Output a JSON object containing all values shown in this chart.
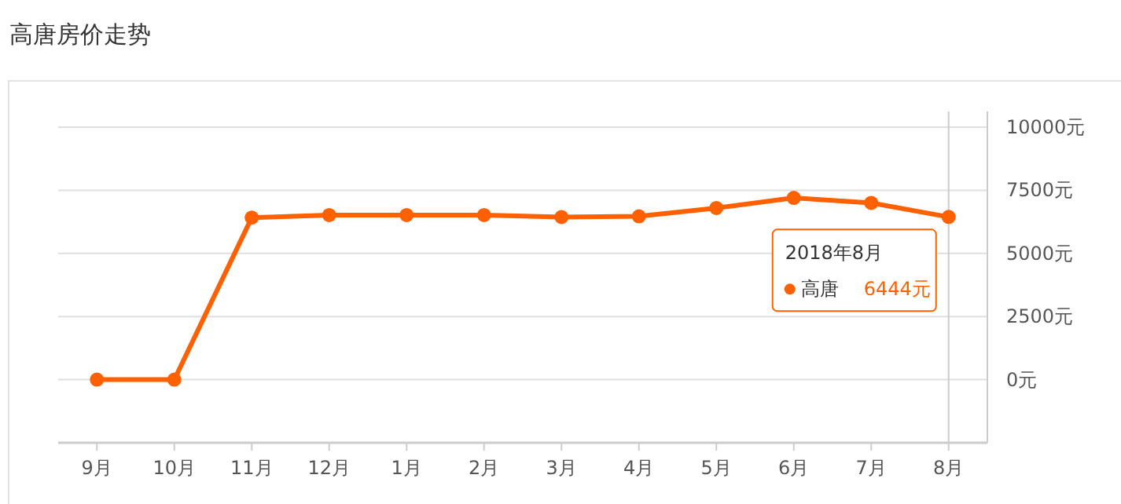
{
  "chart_data": {
    "type": "line",
    "title": "高唐房价走势",
    "categories": [
      "9月",
      "10月",
      "11月",
      "12月",
      "1月",
      "2月",
      "3月",
      "4月",
      "5月",
      "6月",
      "7月",
      "8月"
    ],
    "series": [
      {
        "name": "高唐",
        "color": "#ff6000",
        "values": [
          0,
          0,
          6420,
          6520,
          6520,
          6520,
          6440,
          6470,
          6800,
          7200,
          7000,
          6444
        ],
        "value_labels": [
          null,
          null,
          null,
          null,
          null,
          null,
          null,
          null,
          null,
          null,
          null,
          "6444元"
        ]
      }
    ],
    "ylim": [
      -2500,
      10000
    ],
    "yticks": [
      {
        "value": -2500,
        "label": null
      },
      {
        "value": 0,
        "label": "0元"
      },
      {
        "value": 2500,
        "label": "2500元"
      },
      {
        "value": 5000,
        "label": "5000元"
      },
      {
        "value": 7500,
        "label": "7500元"
      },
      {
        "value": 10000,
        "label": "10000元"
      }
    ],
    "grid": "y",
    "marker": "circle",
    "ref_lines": [
      {
        "axis": "x",
        "value": "8月",
        "color": "#cccccc"
      }
    ],
    "annotations": [
      "2018年8月"
    ]
  }
}
